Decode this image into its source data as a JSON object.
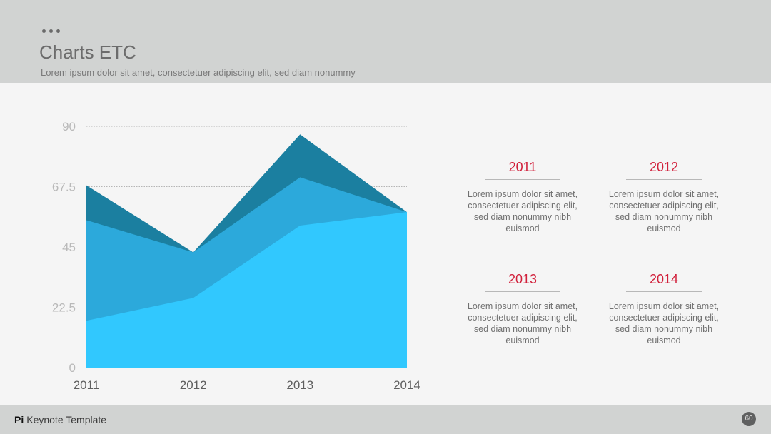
{
  "header": {
    "title": "Charts ETC",
    "subtitle": "Lorem ipsum dolor sit amet, consectetuer adipiscing elit, sed diam nonummy"
  },
  "footer": {
    "brand": "Pi",
    "label": "Keynote Template",
    "page_number": "60"
  },
  "colors": {
    "series_dark": "#1b7fa0",
    "series_mid": "#2ca9db",
    "series_light": "#31c8fe",
    "accent_red": "#d1203b"
  },
  "chart_data": {
    "type": "area",
    "categories": [
      "2011",
      "2012",
      "2013",
      "2014"
    ],
    "series": [
      {
        "values": [
          68,
          43,
          87,
          58
        ]
      },
      {
        "values": [
          55,
          43,
          71,
          58
        ]
      },
      {
        "values": [
          17.5,
          26,
          53,
          58
        ]
      }
    ],
    "y_ticks": [
      "90",
      "67.5",
      "45",
      "22.5",
      "0"
    ],
    "ylim": [
      0,
      90
    ],
    "grid": "dotted horizontal at 67.5 and 90"
  },
  "info_blocks": [
    {
      "year": "2011",
      "text": "Lorem ipsum dolor sit amet, consectetuer adipiscing elit, sed diam nonummy nibh euismod"
    },
    {
      "year": "2012",
      "text": "Lorem ipsum dolor sit amet, consectetuer adipiscing elit, sed diam nonummy nibh euismod"
    },
    {
      "year": "2013",
      "text": "Lorem ipsum dolor sit amet, consectetuer adipiscing elit, sed diam nonummy nibh euismod"
    },
    {
      "year": "2014",
      "text": "Lorem ipsum dolor sit amet, consectetuer adipiscing elit, sed diam nonummy nibh euismod"
    }
  ]
}
